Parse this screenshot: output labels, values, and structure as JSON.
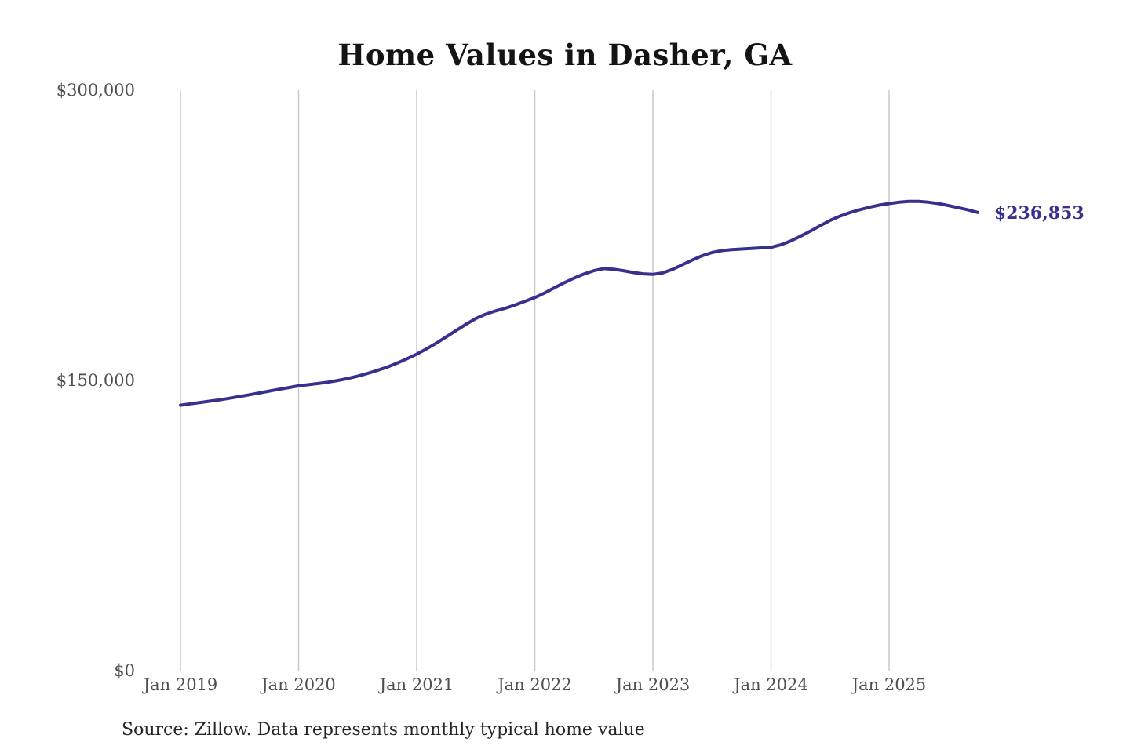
{
  "title": "Home Values in Dasher, GA",
  "source_note": "Source: Zillow. Data represents monthly typical home value",
  "colors": {
    "line": "#37308f",
    "end_label": "#37308f",
    "gridline": "#c9c9c9",
    "axis_text": "#4f4f4f",
    "title_text": "#141414"
  },
  "chart_data": {
    "type": "line",
    "title": "Home Values in Dasher, GA",
    "xlabel": "",
    "ylabel": "",
    "ylim": [
      0,
      300000
    ],
    "y_ticks": [
      0,
      150000,
      300000
    ],
    "y_tick_labels": [
      "$0",
      "$150,000",
      "$300,000"
    ],
    "x_tick_labels": [
      "Jan 2019",
      "Jan 2020",
      "Jan 2021",
      "Jan 2022",
      "Jan 2023",
      "Jan 2024",
      "Jan 2025"
    ],
    "x_start_month": "2019-01",
    "x_interval": "month",
    "grid": "vertical-only",
    "legend": "none",
    "end_label": "$236,853",
    "latest_value": 236853,
    "series": [
      {
        "name": "Monthly typical home value",
        "unit": "USD",
        "values": [
          137200,
          137900,
          138600,
          139300,
          140000,
          140800,
          141700,
          142600,
          143500,
          144500,
          145400,
          146300,
          147200,
          147800,
          148400,
          149100,
          150000,
          151000,
          152200,
          153600,
          155200,
          156900,
          158900,
          161200,
          163600,
          166300,
          169300,
          172500,
          175800,
          179000,
          182000,
          184200,
          185900,
          187300,
          189000,
          190900,
          192800,
          195200,
          197900,
          200500,
          202900,
          205000,
          206700,
          207800,
          207500,
          206700,
          205800,
          205100,
          204800,
          205600,
          207400,
          209800,
          212200,
          214400,
          216100,
          217100,
          217600,
          217900,
          218200,
          218500,
          218800,
          220100,
          222100,
          224500,
          227200,
          230000,
          232700,
          234900,
          236700,
          238200,
          239500,
          240600,
          241400,
          242100,
          242500,
          242500,
          242100,
          241400,
          240400,
          239300,
          238200,
          236853
        ]
      }
    ]
  }
}
